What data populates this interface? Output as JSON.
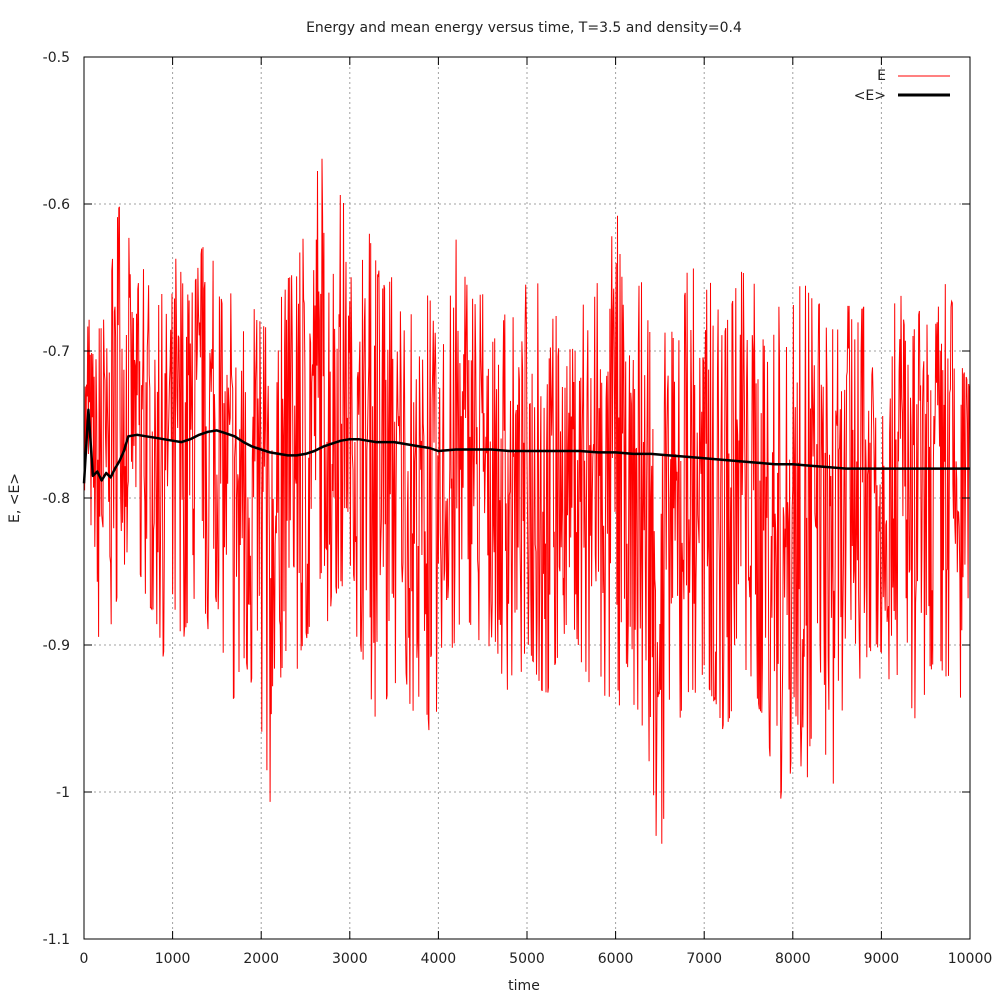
{
  "chart_data": {
    "type": "line",
    "title": "Energy and mean energy versus time, T=3.5 and density=0.4",
    "xlabel": "time",
    "ylabel": "E, <E>",
    "xlim": [
      0,
      10000
    ],
    "ylim": [
      -1.1,
      -0.5
    ],
    "x_ticks": [
      0,
      1000,
      2000,
      3000,
      4000,
      5000,
      6000,
      7000,
      8000,
      9000,
      10000
    ],
    "x_tick_labels": [
      "0",
      "1000",
      "2000",
      "3000",
      "4000",
      "5000",
      "6000",
      "7000",
      "8000",
      "9000",
      "10000"
    ],
    "y_ticks": [
      -1.1,
      -1.0,
      -0.9,
      -0.8,
      -0.7,
      -0.6,
      -0.5
    ],
    "y_tick_labels": [
      "-1.1",
      "-1",
      "-0.9",
      "-0.8",
      "-0.7",
      "-0.6",
      "-0.5"
    ],
    "grid": true,
    "legend_position": "top-right",
    "series": [
      {
        "name": "E",
        "color": "#ff0000",
        "x": [
          0,
          100,
          200,
          300,
          400,
          500,
          600,
          700,
          800,
          900,
          1000,
          1100,
          1200,
          1300,
          1400,
          1500,
          1600,
          1700,
          1800,
          1900,
          2000,
          2100,
          2200,
          2300,
          2400,
          2500,
          2600,
          2700,
          2800,
          2900,
          3000,
          3100,
          3200,
          3300,
          3400,
          3500,
          3600,
          3700,
          3800,
          3900,
          4000,
          4100,
          4200,
          4300,
          4400,
          4500,
          4600,
          4700,
          4800,
          4900,
          5000,
          5100,
          5200,
          5300,
          5400,
          5500,
          5600,
          5700,
          5800,
          5900,
          6000,
          6100,
          6200,
          6300,
          6400,
          6500,
          6600,
          6700,
          6800,
          6900,
          7000,
          7100,
          7200,
          7300,
          7400,
          7500,
          7600,
          7700,
          7800,
          7900,
          8000,
          8100,
          8200,
          8300,
          8400,
          8500,
          8600,
          8700,
          8800,
          8900,
          9000,
          9100,
          9200,
          9300,
          9400,
          9500,
          9600,
          9700,
          9800,
          9900,
          10000
        ],
        "low": [
          -0.79,
          -0.88,
          -0.91,
          -0.89,
          -0.86,
          -0.84,
          -0.85,
          -0.87,
          -0.88,
          -0.91,
          -0.87,
          -0.9,
          -0.88,
          -0.86,
          -0.89,
          -0.87,
          -0.92,
          -0.94,
          -0.91,
          -0.93,
          -0.96,
          -1.01,
          -0.93,
          -0.9,
          -0.92,
          -0.9,
          -0.88,
          -0.91,
          -0.87,
          -0.86,
          -0.88,
          -0.9,
          -0.92,
          -0.96,
          -0.94,
          -0.93,
          -0.91,
          -0.95,
          -0.94,
          -0.96,
          -0.95,
          -0.92,
          -0.9,
          -0.88,
          -0.89,
          -0.91,
          -0.9,
          -0.97,
          -0.92,
          -0.93,
          -0.9,
          -0.92,
          -0.94,
          -0.92,
          -0.9,
          -0.88,
          -0.91,
          -0.93,
          -0.92,
          -0.94,
          -0.93,
          -0.96,
          -0.94,
          -0.96,
          -0.99,
          -1.06,
          -0.98,
          -0.96,
          -0.93,
          -0.94,
          -0.92,
          -0.94,
          -0.96,
          -0.95,
          -0.93,
          -0.92,
          -0.94,
          -0.96,
          -1.0,
          -1.01,
          -0.98,
          -1.04,
          -0.97,
          -0.96,
          -0.99,
          -1.01,
          -0.97,
          -0.94,
          -0.92,
          -0.9,
          -0.91,
          -0.93,
          -0.92,
          -0.94,
          -0.96,
          -0.93,
          -0.91,
          -0.92,
          -0.93,
          -0.94,
          -0.88
        ],
        "high": [
          -0.69,
          -0.66,
          -0.68,
          -0.64,
          -0.59,
          -0.61,
          -0.65,
          -0.63,
          -0.68,
          -0.64,
          -0.62,
          -0.64,
          -0.66,
          -0.63,
          -0.6,
          -0.65,
          -0.66,
          -0.64,
          -0.68,
          -0.66,
          -0.67,
          -0.68,
          -0.66,
          -0.64,
          -0.64,
          -0.6,
          -0.57,
          -0.55,
          -0.59,
          -0.58,
          -0.6,
          -0.65,
          -0.6,
          -0.63,
          -0.65,
          -0.63,
          -0.68,
          -0.66,
          -0.66,
          -0.65,
          -0.69,
          -0.68,
          -0.61,
          -0.64,
          -0.66,
          -0.65,
          -0.69,
          -0.67,
          -0.66,
          -0.67,
          -0.64,
          -0.65,
          -0.63,
          -0.67,
          -0.66,
          -0.67,
          -0.65,
          -0.68,
          -0.64,
          -0.66,
          -0.57,
          -0.67,
          -0.66,
          -0.64,
          -0.68,
          -0.69,
          -0.67,
          -0.69,
          -0.64,
          -0.63,
          -0.65,
          -0.64,
          -0.68,
          -0.66,
          -0.63,
          -0.65,
          -0.64,
          -0.7,
          -0.67,
          -0.64,
          -0.66,
          -0.63,
          -0.65,
          -0.66,
          -0.68,
          -0.67,
          -0.65,
          -0.68,
          -0.66,
          -0.63,
          -0.66,
          -0.68,
          -0.64,
          -0.7,
          -0.66,
          -0.67,
          -0.68,
          -0.64,
          -0.66,
          -0.7,
          -0.72
        ]
      },
      {
        "name": "<E>",
        "color": "#000000",
        "x": [
          0,
          50,
          100,
          150,
          200,
          250,
          300,
          350,
          400,
          450,
          500,
          600,
          700,
          800,
          900,
          1000,
          1100,
          1200,
          1300,
          1400,
          1500,
          1600,
          1700,
          1800,
          1900,
          2000,
          2100,
          2200,
          2300,
          2400,
          2500,
          2600,
          2700,
          2800,
          2900,
          3000,
          3100,
          3200,
          3300,
          3400,
          3500,
          3600,
          3700,
          3800,
          3900,
          4000,
          4200,
          4400,
          4600,
          4800,
          5000,
          5200,
          5400,
          5600,
          5800,
          6000,
          6200,
          6400,
          6600,
          6800,
          7000,
          7200,
          7400,
          7600,
          7800,
          8000,
          8200,
          8400,
          8600,
          8800,
          9000,
          9200,
          9400,
          9600,
          9800,
          10000
        ],
        "values": [
          -0.79,
          -0.74,
          -0.785,
          -0.782,
          -0.788,
          -0.783,
          -0.786,
          -0.78,
          -0.775,
          -0.768,
          -0.758,
          -0.757,
          -0.758,
          -0.759,
          -0.76,
          -0.761,
          -0.762,
          -0.76,
          -0.757,
          -0.755,
          -0.754,
          -0.756,
          -0.758,
          -0.762,
          -0.765,
          -0.767,
          -0.769,
          -0.77,
          -0.771,
          -0.771,
          -0.77,
          -0.768,
          -0.765,
          -0.763,
          -0.761,
          -0.76,
          -0.76,
          -0.761,
          -0.762,
          -0.762,
          -0.762,
          -0.763,
          -0.764,
          -0.765,
          -0.766,
          -0.768,
          -0.767,
          -0.767,
          -0.767,
          -0.768,
          -0.768,
          -0.768,
          -0.768,
          -0.768,
          -0.769,
          -0.769,
          -0.77,
          -0.77,
          -0.771,
          -0.772,
          -0.773,
          -0.774,
          -0.775,
          -0.776,
          -0.777,
          -0.777,
          -0.778,
          -0.779,
          -0.78,
          -0.78,
          -0.78,
          -0.78,
          -0.78,
          -0.78,
          -0.78,
          -0.78
        ]
      }
    ]
  }
}
